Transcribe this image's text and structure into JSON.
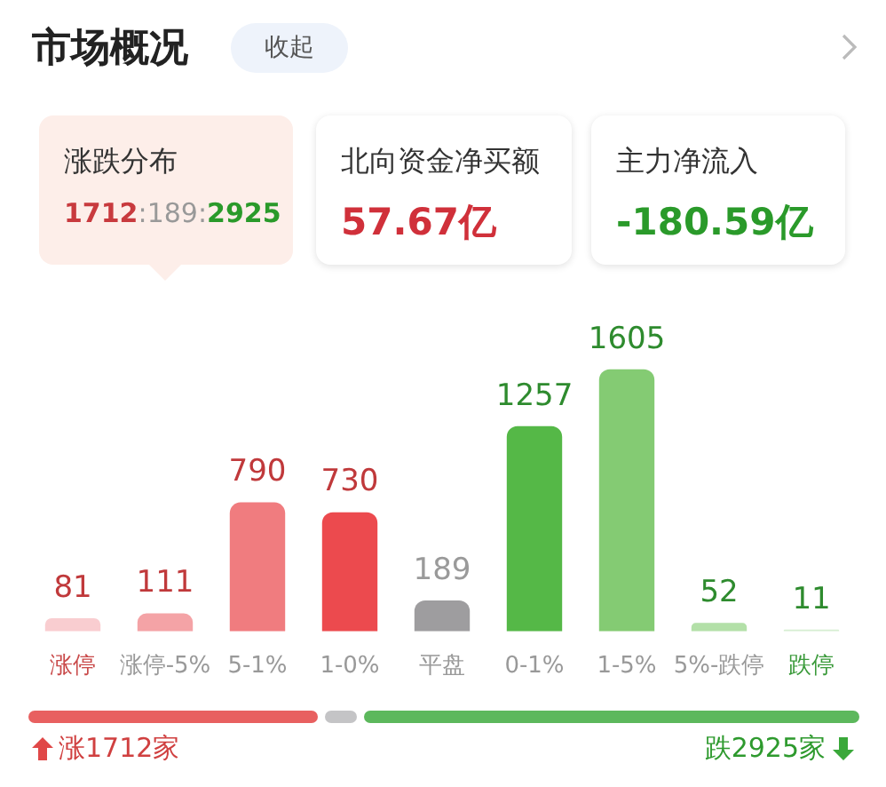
{
  "chart_data": {
    "type": "bar",
    "title": "市场概况",
    "categories": [
      "涨停",
      "涨停-5%",
      "5-1%",
      "1-0%",
      "平盘",
      "0-1%",
      "1-5%",
      "5%-跌停",
      "跌停"
    ],
    "values": [
      81,
      111,
      790,
      730,
      189,
      1257,
      1605,
      52,
      11
    ],
    "colors": [
      "#f9cdd0",
      "#f4a3a6",
      "#f07c7f",
      "#ec4a4e",
      "#9e9d9f",
      "#55b847",
      "#84cb73",
      "#b3e0a8",
      "#d7eed2"
    ],
    "data_labels": true,
    "grid": false,
    "legend": false,
    "tick_labels": "x",
    "annotations": [
      "收起",
      "涨跌分布",
      "1712:189:2925",
      "北向资金净买额",
      "57.67亿",
      "主力净流入",
      "-180.59亿",
      "涨1712家",
      "跌2925家"
    ]
  }
}
